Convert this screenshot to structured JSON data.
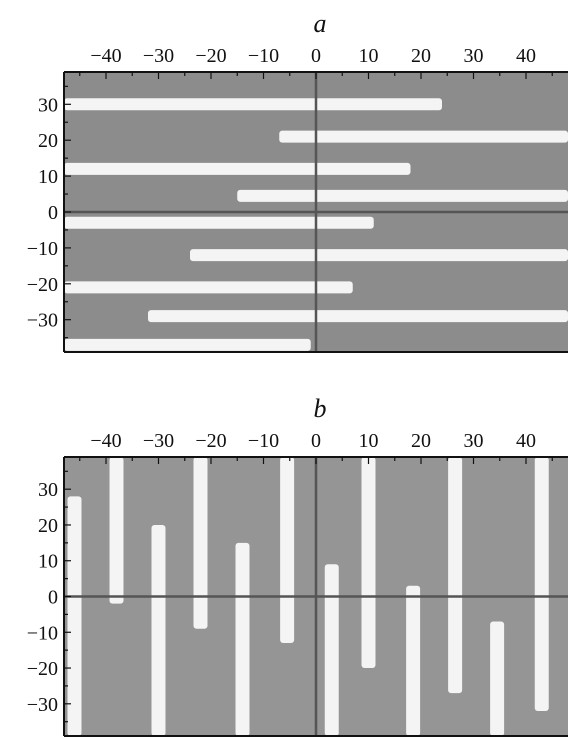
{
  "panels": [
    {
      "label": "a",
      "orientation": "horizontal",
      "x_ticks": [
        "−40",
        "−30",
        "−20",
        "−10",
        "0",
        "10",
        "20",
        "30",
        "40"
      ],
      "y_ticks": [
        "30",
        "20",
        "10",
        "0",
        "−10",
        "−20",
        "−30"
      ],
      "x_tick_values": [
        -40,
        -30,
        -20,
        -10,
        0,
        10,
        20,
        30,
        40
      ],
      "y_tick_values": [
        30,
        20,
        10,
        0,
        -10,
        -20,
        -30
      ],
      "range": [
        -48,
        48,
        -39,
        39
      ],
      "colors": {
        "background": "#8c8c8c",
        "stripe": "#f4f4f4",
        "axis": "#555555"
      },
      "stripes": [
        {
          "position": 30,
          "from": -48,
          "to": 24
        },
        {
          "position": 21,
          "from": -7,
          "to": 48
        },
        {
          "position": 12,
          "from": -48,
          "to": 18
        },
        {
          "position": 4.5,
          "from": -15,
          "to": 48
        },
        {
          "position": -3,
          "from": -48,
          "to": 11
        },
        {
          "position": -12,
          "from": -24,
          "to": 48
        },
        {
          "position": -21,
          "from": -48,
          "to": 7
        },
        {
          "position": -29,
          "from": -32,
          "to": 48
        },
        {
          "position": -37,
          "from": -48,
          "to": -1
        }
      ]
    },
    {
      "label": "b",
      "orientation": "vertical",
      "x_ticks": [
        "−40",
        "−30",
        "−20",
        "−10",
        "0",
        "10",
        "20",
        "30",
        "40"
      ],
      "y_ticks": [
        "30",
        "20",
        "10",
        "0",
        "−10",
        "−20",
        "−30"
      ],
      "x_tick_values": [
        -40,
        -30,
        -20,
        -10,
        0,
        10,
        20,
        30,
        40
      ],
      "y_tick_values": [
        30,
        20,
        10,
        0,
        -10,
        -20,
        -30
      ],
      "range": [
        -48,
        48,
        -39,
        39
      ],
      "colors": {
        "background": "#959595",
        "stripe": "#f4f4f4",
        "axis": "#555555"
      },
      "stripes": [
        {
          "position": -46,
          "from": -39,
          "to": 28
        },
        {
          "position": -38,
          "from": -2,
          "to": 39
        },
        {
          "position": -30,
          "from": -39,
          "to": 20
        },
        {
          "position": -22,
          "from": -9,
          "to": 39
        },
        {
          "position": -14,
          "from": -39,
          "to": 15
        },
        {
          "position": -5.5,
          "from": -13,
          "to": 39
        },
        {
          "position": 3,
          "from": -39,
          "to": 9
        },
        {
          "position": 10,
          "from": -20,
          "to": 39
        },
        {
          "position": 18.5,
          "from": -39,
          "to": 3
        },
        {
          "position": 26.5,
          "from": -27,
          "to": 39
        },
        {
          "position": 34.5,
          "from": -39,
          "to": -7
        },
        {
          "position": 43,
          "from": -32,
          "to": 39
        }
      ]
    }
  ]
}
